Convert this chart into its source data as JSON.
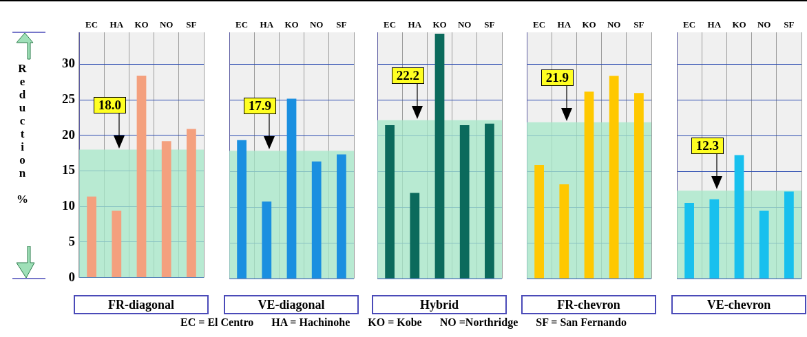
{
  "chart_data": [
    {
      "type": "bar",
      "xlabel": "FR-diagonal",
      "ylabel": "Reduction %",
      "categories": [
        "EC",
        "HA",
        "KO",
        "NO",
        "SF"
      ],
      "values": [
        11.4,
        9.4,
        28.4,
        19.2,
        20.9
      ],
      "color": "#f4a07e",
      "ylim": [
        0,
        34.5
      ],
      "yticks": [
        0,
        5,
        10,
        15,
        20,
        25,
        30
      ],
      "grid": true,
      "bands": [
        {
          "axis": "y",
          "from": 0,
          "to": 18.0,
          "label": "18.0",
          "color": "#a6e8c8"
        }
      ],
      "annotations": [
        "EC = El Centro",
        "HA = Hachinohe",
        "KO = Kobe",
        "NO =Northridge",
        "SF = San Fernando"
      ]
    },
    {
      "type": "bar",
      "xlabel": "VE-diagonal",
      "categories": [
        "EC",
        "HA",
        "KO",
        "NO",
        "SF"
      ],
      "values": [
        19.4,
        10.8,
        25.2,
        16.4,
        17.4
      ],
      "color": "#1a8fe0",
      "ylim": [
        0,
        34.5
      ],
      "yticks": [
        0,
        5,
        10,
        15,
        20,
        25,
        30
      ],
      "grid": true,
      "tick_labels": "x",
      "bands": [
        {
          "axis": "y",
          "from": 0,
          "to": 17.9,
          "label": "17.9",
          "color": "#a6e8c8"
        }
      ]
    },
    {
      "type": "bar",
      "xlabel": "Hybrid",
      "categories": [
        "EC",
        "HA",
        "KO",
        "NO",
        "SF"
      ],
      "values": [
        21.5,
        12.0,
        34.3,
        21.5,
        21.7
      ],
      "color": "#0b6a5c",
      "ylim": [
        0,
        34.5
      ],
      "yticks": [
        0,
        5,
        10,
        15,
        20,
        25,
        30
      ],
      "grid": true,
      "tick_labels": "x",
      "bands": [
        {
          "axis": "y",
          "from": 0,
          "to": 22.2,
          "label": "22.2",
          "color": "#a6e8c8"
        }
      ]
    },
    {
      "type": "bar",
      "xlabel": "FR-chevron",
      "categories": [
        "EC",
        "HA",
        "KO",
        "NO",
        "SF"
      ],
      "values": [
        15.9,
        13.2,
        26.2,
        28.4,
        26.0
      ],
      "color": "#ffc800",
      "ylim": [
        0,
        34.5
      ],
      "yticks": [
        0,
        5,
        10,
        15,
        20,
        25,
        30
      ],
      "grid": true,
      "tick_labels": "x",
      "bands": [
        {
          "axis": "y",
          "from": 0,
          "to": 21.9,
          "label": "21.9",
          "color": "#a6e8c8"
        }
      ]
    },
    {
      "type": "bar",
      "xlabel": "VE-chevron",
      "categories": [
        "EC",
        "HA",
        "KO",
        "NO",
        "SF"
      ],
      "values": [
        10.6,
        11.1,
        17.3,
        9.5,
        12.2
      ],
      "color": "#18c0ee",
      "ylim": [
        0,
        34.5
      ],
      "yticks": [
        0,
        5,
        10,
        15,
        20,
        25,
        30
      ],
      "grid": true,
      "tick_labels": "x",
      "bands": [
        {
          "axis": "y",
          "from": 0,
          "to": 12.3,
          "label": "12.3",
          "color": "#a6e8c8"
        }
      ]
    }
  ]
}
